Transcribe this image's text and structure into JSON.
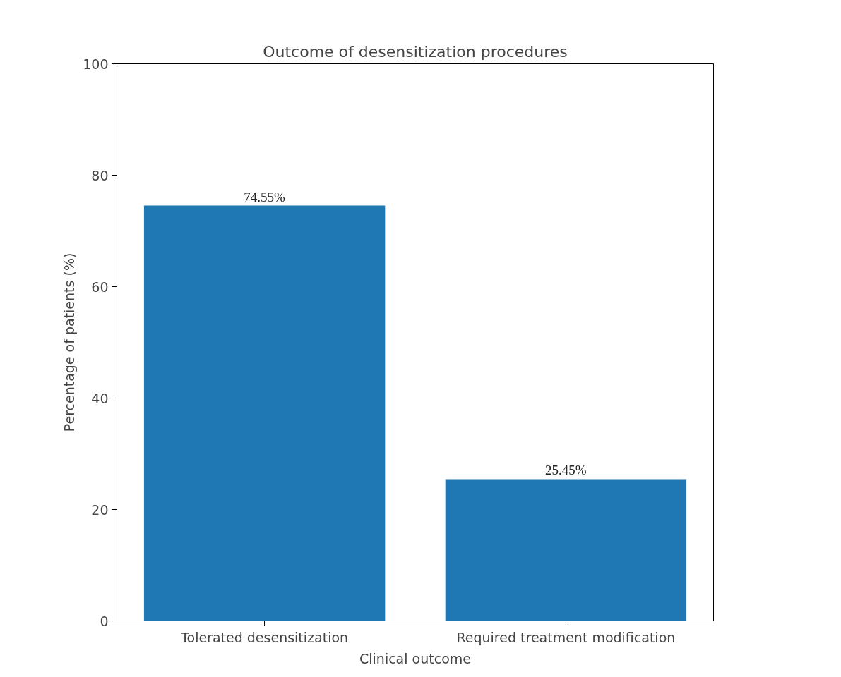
{
  "chart_data": {
    "type": "bar",
    "title": "Outcome of desensitization procedures",
    "xlabel": "Clinical outcome",
    "ylabel": "Percentage of patients (%)",
    "categories": [
      "Tolerated desensitization",
      "Required treatment modification"
    ],
    "values": [
      74.55,
      25.45
    ],
    "value_labels": [
      "74.55%",
      "25.45%"
    ],
    "color": "#1f77b4",
    "ylim": [
      0,
      100
    ],
    "yticks": [
      0,
      20,
      40,
      60,
      80,
      100
    ]
  }
}
